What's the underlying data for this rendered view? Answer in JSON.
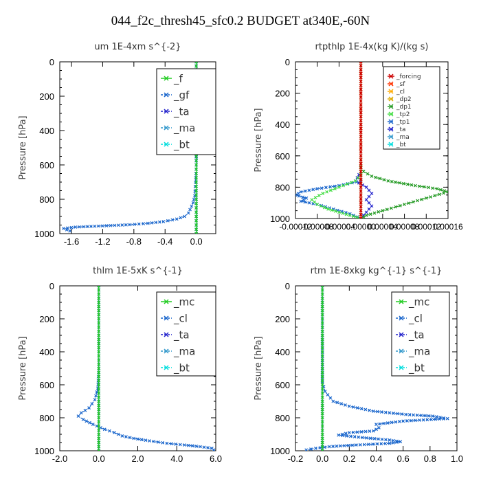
{
  "title": "044_f2c_thresh45_sfc0.2  BUDGET at340E,-60N",
  "chart_data": [
    {
      "id": "um",
      "type": "line",
      "title": "um   1E-4xm  s^{-2}",
      "ylabel": "Pressure  [hPa]",
      "xlim": [
        -1.75,
        0.25
      ],
      "ylim": [
        1000,
        0
      ],
      "xticks": [
        "-1.6",
        "-1.2",
        "-0.8",
        "-0.4",
        "0.0"
      ],
      "xtick_values": [
        -1.6,
        -1.2,
        -0.8,
        -0.4,
        0.0
      ],
      "yticks": [
        0,
        200,
        400,
        600,
        800,
        1000
      ],
      "legend": [
        "_f",
        "_gf",
        "_ta",
        "_ma",
        "_bt"
      ],
      "series": [
        {
          "name": "_f",
          "color": "#22cc22",
          "x": [
            0,
            0,
            0,
            0,
            0,
            0,
            0,
            0,
            0,
            0,
            0
          ],
          "y": [
            0,
            100,
            200,
            300,
            400,
            500,
            600,
            700,
            800,
            900,
            1000
          ]
        },
        {
          "name": "_gf",
          "color": "#1a66cc",
          "x": [
            0,
            0,
            0,
            -0.01,
            -0.02,
            -0.04,
            -0.06,
            -0.08,
            -0.1,
            -0.15,
            -0.25,
            -0.42,
            -0.62,
            -0.85,
            -1.2,
            -1.55,
            -1.7,
            -1.62
          ],
          "y": [
            0,
            300,
            600,
            700,
            780,
            820,
            840,
            860,
            880,
            900,
            915,
            930,
            940,
            948,
            955,
            962,
            970,
            985
          ]
        },
        {
          "name": "_ta",
          "color": "#2222cc",
          "x": [
            0,
            0,
            0,
            0,
            0,
            0
          ],
          "y": [
            0,
            200,
            400,
            600,
            800,
            1000
          ]
        },
        {
          "name": "_ma",
          "color": "#3399cc",
          "x": [
            0,
            0,
            0,
            0,
            0,
            0
          ],
          "y": [
            0,
            200,
            400,
            600,
            800,
            1000
          ]
        },
        {
          "name": "_bt",
          "color": "#00dddd",
          "x": [
            0,
            0,
            0,
            0,
            0,
            0
          ],
          "y": [
            0,
            200,
            400,
            600,
            800,
            1000
          ]
        }
      ]
    },
    {
      "id": "rtpthlp",
      "type": "line",
      "title": "rtpthlp   1E-4x(kg K)/(kg s)",
      "ylabel": "Pressure  [hPa]",
      "xlim": [
        -0.00012,
        0.00016
      ],
      "ylim": [
        1000,
        0
      ],
      "xticks": [
        "-0.00012",
        "-0.00008",
        "-0.00004",
        "0.00000",
        "0.00004",
        "0.00008",
        "0.00012",
        "0.00016"
      ],
      "xtick_values": [
        -0.00012,
        -8e-05,
        -4e-05,
        0.0,
        4e-05,
        8e-05,
        0.00012,
        0.00016
      ],
      "yticks": [
        0,
        200,
        400,
        600,
        800,
        1000
      ],
      "legend": [
        "_forcing",
        "_sf",
        "_cl",
        "_dp2",
        "_dp1",
        "_tp2",
        "_tp1",
        "_ta",
        "_ma",
        "_bt"
      ],
      "series": [
        {
          "name": "_forcing",
          "color": "#cc0000",
          "x": [
            0,
            0,
            0,
            0,
            0,
            0
          ],
          "y": [
            0,
            200,
            400,
            600,
            800,
            1000
          ]
        },
        {
          "name": "_sf",
          "color": "#ff3300",
          "x": [
            0,
            0,
            0,
            0,
            0,
            0
          ],
          "y": [
            0,
            200,
            400,
            600,
            800,
            1000
          ]
        },
        {
          "name": "_cl",
          "color": "#ffaa00",
          "x": [
            0,
            0,
            0,
            0,
            0,
            0
          ],
          "y": [
            0,
            200,
            400,
            600,
            800,
            1000
          ]
        },
        {
          "name": "_dp2",
          "color": "#ddaa00",
          "x": [
            0,
            0,
            0,
            0,
            0,
            0
          ],
          "y": [
            0,
            200,
            400,
            600,
            800,
            1000
          ]
        },
        {
          "name": "_dp1",
          "color": "#229922",
          "x": [
            0,
            5e-06,
            2e-05,
            5e-05,
            0.0001,
            0.00014,
            0.00016,
            0.00012,
            8e-05,
            4e-05,
            1e-05,
            0
          ],
          "y": [
            670,
            700,
            730,
            760,
            790,
            810,
            830,
            870,
            910,
            950,
            980,
            1000
          ]
        },
        {
          "name": "_tp2",
          "color": "#44dd44",
          "x": [
            0,
            -1e-05,
            -4e-05,
            -7e-05,
            -9e-05,
            -8e-05,
            -6e-05,
            -4e-05,
            -2e-05,
            0
          ],
          "y": [
            720,
            760,
            800,
            840,
            880,
            910,
            940,
            960,
            980,
            1000
          ]
        },
        {
          "name": "_tp1",
          "color": "#1a66cc",
          "x": [
            0,
            -4e-05,
            -8e-05,
            -0.00011,
            -0.00012,
            -0.0001,
            -0.00011,
            -8e-05,
            -5e-05,
            -2e-05,
            0
          ],
          "y": [
            760,
            790,
            810,
            830,
            850,
            870,
            890,
            910,
            940,
            970,
            1000
          ]
        },
        {
          "name": "_ta",
          "color": "#2222cc",
          "x": [
            0,
            -1e-05,
            1e-05,
            2e-05,
            1e-05,
            2e-05,
            1e-05,
            0
          ],
          "y": [
            700,
            760,
            800,
            840,
            880,
            920,
            960,
            1000
          ]
        },
        {
          "name": "_ma",
          "color": "#3399cc",
          "x": [
            0,
            0,
            0,
            0,
            0,
            0
          ],
          "y": [
            0,
            200,
            400,
            600,
            800,
            1000
          ]
        },
        {
          "name": "_bt",
          "color": "#00dddd",
          "x": [
            0,
            0,
            0,
            0,
            0,
            0
          ],
          "y": [
            0,
            200,
            400,
            600,
            800,
            1000
          ]
        }
      ]
    },
    {
      "id": "thlm",
      "type": "line",
      "title": "thlm   1E-5xK  s^{-1}",
      "ylabel": "Pressure  [hPa]",
      "xlim": [
        -2.0,
        6.0
      ],
      "ylim": [
        1000,
        0
      ],
      "xticks": [
        "-2.0",
        "0.0",
        "2.0",
        "4.0",
        "6.0"
      ],
      "xtick_values": [
        -2.0,
        0.0,
        2.0,
        4.0,
        6.0
      ],
      "yticks": [
        0,
        200,
        400,
        600,
        800,
        1000
      ],
      "legend": [
        "_mc",
        "_cl",
        "_ta",
        "_ma",
        "_bt"
      ],
      "series": [
        {
          "name": "_mc",
          "color": "#22cc22",
          "x": [
            0,
            0,
            0,
            0,
            0,
            0,
            0,
            0,
            0,
            0,
            0
          ],
          "y": [
            0,
            100,
            200,
            300,
            400,
            500,
            600,
            700,
            800,
            900,
            1000
          ]
        },
        {
          "name": "_cl",
          "color": "#1a66cc",
          "x": [
            0,
            0,
            -0.05,
            -0.2,
            -0.5,
            -0.9,
            -1.05,
            -0.8,
            -0.3,
            0.3,
            0.8,
            1.2,
            1.8,
            2.6,
            3.5,
            4.4,
            5.2,
            5.8,
            5.9
          ],
          "y": [
            0,
            500,
            620,
            690,
            740,
            770,
            790,
            810,
            840,
            870,
            890,
            910,
            925,
            940,
            955,
            965,
            975,
            985,
            995
          ]
        },
        {
          "name": "_ta",
          "color": "#2222cc",
          "x": [
            0,
            0,
            0,
            0,
            0,
            0
          ],
          "y": [
            0,
            200,
            400,
            600,
            800,
            1000
          ]
        },
        {
          "name": "_ma",
          "color": "#3399cc",
          "x": [
            0,
            0,
            0,
            0,
            0,
            0
          ],
          "y": [
            0,
            200,
            400,
            600,
            800,
            1000
          ]
        },
        {
          "name": "_bt",
          "color": "#00dddd",
          "x": [
            0,
            0,
            0,
            0,
            0,
            0
          ],
          "y": [
            0,
            200,
            400,
            600,
            800,
            1000
          ]
        }
      ]
    },
    {
      "id": "rtm",
      "type": "line",
      "title": "rtm   1E-8xkg  kg^{-1}  s^{-1}",
      "ylabel": "Pressure  [hPa]",
      "xlim": [
        -0.2,
        1.0
      ],
      "ylim": [
        1000,
        0
      ],
      "xticks": [
        "-0.2",
        "0.0",
        "0.2",
        "0.4",
        "0.6",
        "0.8",
        "1.0"
      ],
      "xtick_values": [
        -0.2,
        0.0,
        0.2,
        0.4,
        0.6,
        0.8,
        1.0
      ],
      "yticks": [
        0,
        200,
        400,
        600,
        800,
        1000
      ],
      "legend": [
        "_mc",
        "_cl",
        "_ta",
        "_ma",
        "_bt"
      ],
      "series": [
        {
          "name": "_mc",
          "color": "#22cc22",
          "x": [
            0,
            0,
            0,
            0,
            0,
            0,
            0,
            0,
            0,
            0,
            0
          ],
          "y": [
            0,
            100,
            200,
            300,
            400,
            500,
            600,
            700,
            800,
            900,
            1000
          ]
        },
        {
          "name": "_cl",
          "color": "#1a66cc",
          "x": [
            0,
            0,
            0.02,
            0.08,
            0.2,
            0.38,
            0.62,
            0.82,
            0.93,
            0.6,
            0.4,
            0.42,
            0.38,
            0.2,
            0.12,
            0.3,
            0.5,
            0.58,
            0.5,
            0.25,
            0.05,
            -0.05,
            -0.12
          ],
          "y": [
            0,
            580,
            640,
            700,
            730,
            760,
            780,
            790,
            805,
            820,
            840,
            860,
            880,
            890,
            905,
            920,
            935,
            945,
            955,
            965,
            975,
            985,
            995
          ]
        },
        {
          "name": "_ta",
          "color": "#2222cc",
          "x": [
            0,
            0,
            0,
            0,
            0,
            0
          ],
          "y": [
            0,
            200,
            400,
            600,
            800,
            1000
          ]
        },
        {
          "name": "_ma",
          "color": "#3399cc",
          "x": [
            0,
            0,
            0,
            0,
            0,
            0
          ],
          "y": [
            0,
            200,
            400,
            600,
            800,
            1000
          ]
        },
        {
          "name": "_bt",
          "color": "#00dddd",
          "x": [
            0,
            0,
            0,
            0,
            0,
            0
          ],
          "y": [
            0,
            200,
            400,
            600,
            800,
            1000
          ]
        }
      ]
    }
  ]
}
